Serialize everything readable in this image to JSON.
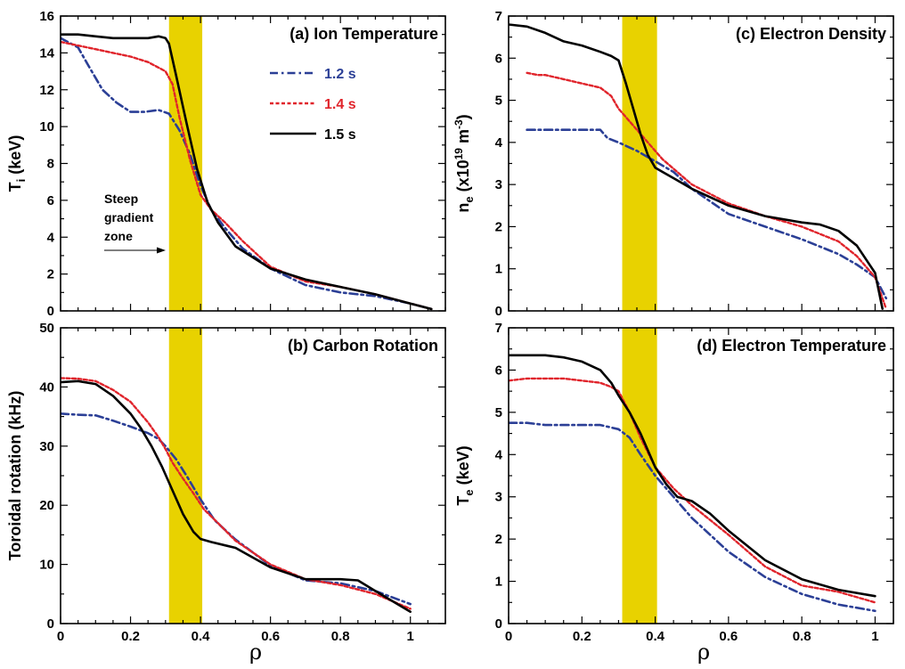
{
  "colors": {
    "series_1_2s": "#2b3f96",
    "series_1_4s": "#e0242b",
    "series_1_5s": "#000000",
    "steep_zone": "#e8d200"
  },
  "legend": [
    {
      "label": "1.2 s",
      "color": "#2b3f96"
    },
    {
      "label": "1.4 s",
      "color": "#e0242b"
    },
    {
      "label": "1.5 s",
      "color": "#000000"
    }
  ],
  "annotation": {
    "line1": "Steep",
    "line2": "gradient",
    "line3": "zone"
  },
  "chart_data": [
    {
      "id": "a",
      "type": "line",
      "title": "(a) Ion Temperature",
      "xlabel": "ρ",
      "ylabel_main": "T",
      "ylabel_sub": "i",
      "ylabel_rest": " (keV)",
      "xlim": [
        0,
        1.1
      ],
      "ylim": [
        0,
        16
      ],
      "xticks": [
        0,
        0.2,
        0.4,
        0.6,
        0.8
      ],
      "xtick_labels": [
        "",
        "",
        "",
        "",
        ""
      ],
      "yticks": [
        0,
        2,
        4,
        6,
        8,
        10,
        12,
        14,
        16
      ],
      "ytick_labels": [
        "0",
        "2",
        "4",
        "6",
        "8",
        "10",
        "12",
        "14",
        "16"
      ],
      "shaded_region": [
        0.31,
        0.405
      ],
      "series": [
        {
          "name": "1.2 s",
          "x": [
            0,
            0.05,
            0.08,
            0.12,
            0.16,
            0.2,
            0.24,
            0.28,
            0.31,
            0.34,
            0.37,
            0.4,
            0.43,
            0.47,
            0.52,
            0.6,
            0.7,
            0.8,
            0.9,
            1.0,
            1.06
          ],
          "y": [
            14.8,
            14.3,
            13.3,
            12.0,
            11.3,
            10.8,
            10.8,
            10.9,
            10.7,
            9.8,
            8.5,
            6.8,
            5.5,
            4.5,
            3.4,
            2.3,
            1.4,
            1.0,
            0.8,
            0.4,
            0.1
          ]
        },
        {
          "name": "1.4 s",
          "x": [
            0,
            0.05,
            0.1,
            0.15,
            0.2,
            0.25,
            0.28,
            0.3,
            0.32,
            0.34,
            0.37,
            0.4,
            0.43,
            0.47,
            0.52,
            0.6,
            0.7,
            0.8,
            0.9,
            1.0,
            1.06
          ],
          "y": [
            14.6,
            14.4,
            14.2,
            14.0,
            13.8,
            13.5,
            13.2,
            13.0,
            12.3,
            10.5,
            8.2,
            6.3,
            5.5,
            4.8,
            3.8,
            2.4,
            1.6,
            1.3,
            0.9,
            0.4,
            0.1
          ]
        },
        {
          "name": "1.5 s",
          "x": [
            0,
            0.05,
            0.1,
            0.15,
            0.2,
            0.25,
            0.28,
            0.3,
            0.31,
            0.33,
            0.36,
            0.39,
            0.42,
            0.45,
            0.5,
            0.6,
            0.7,
            0.8,
            0.9,
            1.0,
            1.06
          ],
          "y": [
            15.0,
            15.0,
            14.9,
            14.8,
            14.8,
            14.8,
            14.9,
            14.8,
            14.5,
            12.8,
            10.2,
            7.7,
            5.9,
            4.8,
            3.5,
            2.3,
            1.7,
            1.3,
            0.9,
            0.4,
            0.1
          ]
        }
      ]
    },
    {
      "id": "b",
      "type": "line",
      "title": "(b) Carbon Rotation",
      "xlabel": "ρ",
      "ylabel_main": "Toroidal rotation (kHz)",
      "ylabel_sub": "",
      "ylabel_rest": "",
      "xlim": [
        0,
        1.1
      ],
      "ylim": [
        0,
        50
      ],
      "xticks": [
        0,
        0.2,
        0.4,
        0.6,
        0.8,
        1
      ],
      "xtick_labels": [
        "0",
        "0.2",
        "0.4",
        "0.6",
        "0.8",
        "1"
      ],
      "yticks": [
        0,
        10,
        20,
        30,
        40,
        50
      ],
      "ytick_labels": [
        "0",
        "10",
        "20",
        "30",
        "40",
        "50"
      ],
      "shaded_region": [
        0.31,
        0.405
      ],
      "series": [
        {
          "name": "1.2 s",
          "x": [
            0,
            0.05,
            0.1,
            0.15,
            0.2,
            0.25,
            0.28,
            0.3,
            0.33,
            0.36,
            0.4,
            0.44,
            0.5,
            0.6,
            0.7,
            0.8,
            0.9,
            1.0
          ],
          "y": [
            35.5,
            35.3,
            35.2,
            34.3,
            33.3,
            32.2,
            31.2,
            30.0,
            27.8,
            25.0,
            21.0,
            17.5,
            14.2,
            9.8,
            7.3,
            6.8,
            5.5,
            3.3
          ]
        },
        {
          "name": "1.4 s",
          "x": [
            0,
            0.05,
            0.1,
            0.15,
            0.2,
            0.25,
            0.28,
            0.3,
            0.32,
            0.35,
            0.38,
            0.41,
            0.45,
            0.5,
            0.6,
            0.7,
            0.8,
            0.9,
            1.0
          ],
          "y": [
            41.5,
            41.4,
            41.0,
            39.5,
            37.5,
            34.0,
            31.5,
            29.5,
            27.2,
            24.5,
            22.0,
            19.3,
            17.0,
            14.0,
            10.0,
            7.5,
            6.5,
            5.0,
            2.5
          ]
        },
        {
          "name": "1.5 s",
          "x": [
            0,
            0.05,
            0.1,
            0.15,
            0.2,
            0.23,
            0.26,
            0.29,
            0.32,
            0.35,
            0.38,
            0.4,
            0.43,
            0.5,
            0.6,
            0.7,
            0.8,
            0.85,
            0.9,
            1.0
          ],
          "y": [
            40.8,
            41.0,
            40.5,
            38.5,
            35.5,
            33.0,
            30.0,
            26.5,
            22.5,
            18.5,
            15.5,
            14.3,
            13.8,
            12.8,
            9.5,
            7.5,
            7.5,
            7.3,
            5.5,
            2.0
          ]
        }
      ]
    },
    {
      "id": "c",
      "type": "line",
      "title": "(c) Electron Density",
      "xlabel": "ρ",
      "ylabel_main": "n",
      "ylabel_sub": "e",
      "ylabel_rest": " (x10",
      "ylabel_sup": "19",
      "ylabel_rest2": " m",
      "ylabel_sup2": "-3",
      "ylabel_end": ")",
      "xlim": [
        0,
        1.05
      ],
      "ylim": [
        0,
        7
      ],
      "xticks": [
        0,
        0.2,
        0.4,
        0.6,
        0.8,
        1
      ],
      "xtick_labels": [
        "",
        "",
        "",
        "",
        "",
        ""
      ],
      "yticks": [
        0,
        1,
        2,
        3,
        4,
        5,
        6,
        7
      ],
      "ytick_labels": [
        "0",
        "1",
        "2",
        "3",
        "4",
        "5",
        "6",
        "7"
      ],
      "shaded_region": [
        0.31,
        0.405
      ],
      "series": [
        {
          "name": "1.2 s",
          "x": [
            0.05,
            0.1,
            0.15,
            0.2,
            0.25,
            0.27,
            0.3,
            0.35,
            0.4,
            0.45,
            0.5,
            0.6,
            0.7,
            0.8,
            0.9,
            0.95,
            1.0,
            1.03
          ],
          "y": [
            4.3,
            4.3,
            4.3,
            4.3,
            4.3,
            4.1,
            4.0,
            3.8,
            3.55,
            3.3,
            2.9,
            2.3,
            2.0,
            1.7,
            1.35,
            1.1,
            0.8,
            0.3
          ]
        },
        {
          "name": "1.4 s",
          "x": [
            0.05,
            0.08,
            0.1,
            0.15,
            0.2,
            0.25,
            0.28,
            0.3,
            0.32,
            0.35,
            0.38,
            0.42,
            0.46,
            0.5,
            0.6,
            0.7,
            0.8,
            0.9,
            0.95,
            1.0,
            1.03
          ],
          "y": [
            5.65,
            5.6,
            5.6,
            5.5,
            5.4,
            5.3,
            5.1,
            4.8,
            4.6,
            4.3,
            4.0,
            3.6,
            3.3,
            3.0,
            2.55,
            2.25,
            2.0,
            1.65,
            1.3,
            0.8,
            0.05
          ]
        },
        {
          "name": "1.5 s",
          "x": [
            0,
            0.05,
            0.1,
            0.15,
            0.2,
            0.25,
            0.28,
            0.3,
            0.32,
            0.34,
            0.36,
            0.38,
            0.4,
            0.42,
            0.46,
            0.5,
            0.6,
            0.7,
            0.8,
            0.85,
            0.9,
            0.95,
            1.0,
            1.02
          ],
          "y": [
            6.8,
            6.75,
            6.6,
            6.4,
            6.3,
            6.15,
            6.05,
            5.95,
            5.4,
            4.8,
            4.2,
            3.7,
            3.4,
            3.3,
            3.1,
            2.9,
            2.5,
            2.25,
            2.1,
            2.05,
            1.9,
            1.55,
            0.9,
            0.05
          ]
        }
      ]
    },
    {
      "id": "d",
      "type": "line",
      "title": "(d) Electron Temperature",
      "xlabel": "ρ",
      "ylabel_main": "T",
      "ylabel_sub": "e",
      "ylabel_rest": " (keV)",
      "xlim": [
        0,
        1.05
      ],
      "ylim": [
        0,
        7
      ],
      "xticks": [
        0,
        0.2,
        0.4,
        0.6,
        0.8,
        1
      ],
      "xtick_labels": [
        "0",
        "0.2",
        "0.4",
        "0.6",
        "0.8",
        "1"
      ],
      "yticks": [
        0,
        1,
        2,
        3,
        4,
        5,
        6,
        7
      ],
      "ytick_labels": [
        "0",
        "1",
        "2",
        "3",
        "4",
        "5",
        "6",
        "7"
      ],
      "shaded_region": [
        0.31,
        0.405
      ],
      "series": [
        {
          "name": "1.2 s",
          "x": [
            0,
            0.05,
            0.1,
            0.15,
            0.2,
            0.25,
            0.3,
            0.33,
            0.36,
            0.4,
            0.45,
            0.5,
            0.6,
            0.7,
            0.8,
            0.9,
            1.0
          ],
          "y": [
            4.75,
            4.75,
            4.7,
            4.7,
            4.7,
            4.7,
            4.6,
            4.4,
            4.0,
            3.5,
            3.0,
            2.5,
            1.7,
            1.1,
            0.7,
            0.45,
            0.3
          ]
        },
        {
          "name": "1.4 s",
          "x": [
            0,
            0.05,
            0.1,
            0.15,
            0.2,
            0.25,
            0.28,
            0.3,
            0.33,
            0.36,
            0.4,
            0.45,
            0.5,
            0.6,
            0.7,
            0.8,
            0.9,
            1.0
          ],
          "y": [
            5.75,
            5.8,
            5.8,
            5.8,
            5.75,
            5.7,
            5.6,
            5.5,
            5.0,
            4.4,
            3.7,
            3.2,
            2.8,
            2.1,
            1.35,
            0.9,
            0.75,
            0.5
          ]
        },
        {
          "name": "1.5 s",
          "x": [
            0,
            0.05,
            0.1,
            0.15,
            0.2,
            0.25,
            0.28,
            0.3,
            0.33,
            0.36,
            0.4,
            0.43,
            0.46,
            0.5,
            0.55,
            0.6,
            0.7,
            0.8,
            0.9,
            1.0
          ],
          "y": [
            6.35,
            6.35,
            6.35,
            6.3,
            6.2,
            6.0,
            5.7,
            5.4,
            5.0,
            4.5,
            3.7,
            3.3,
            3.0,
            2.9,
            2.6,
            2.2,
            1.5,
            1.05,
            0.8,
            0.65
          ]
        }
      ]
    }
  ]
}
